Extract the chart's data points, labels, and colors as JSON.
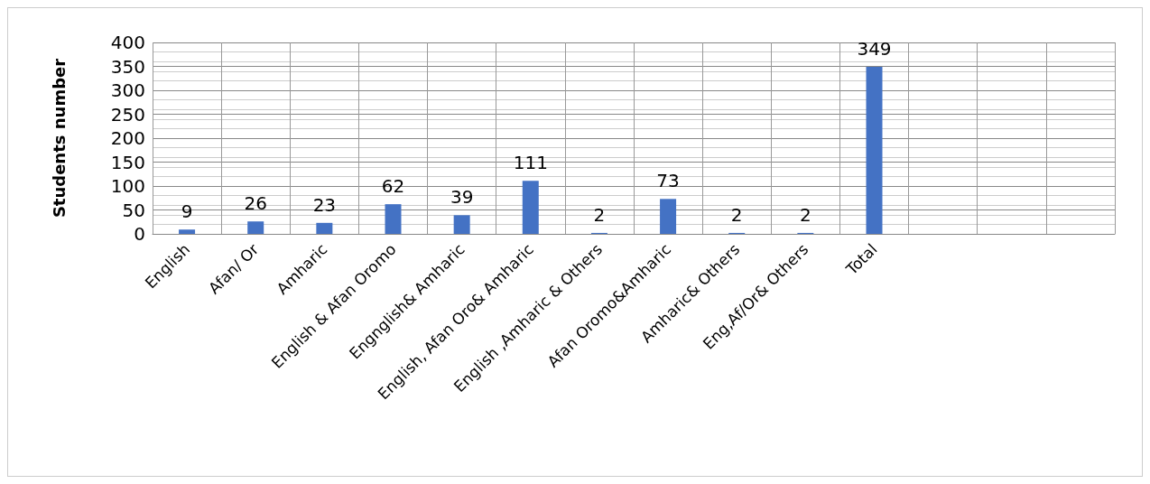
{
  "chart_data": {
    "type": "bar",
    "ylabel": "Students number",
    "categories": [
      "English",
      "Afan/ Or",
      "Amharic",
      "English & Afan Oromo",
      "Engnglish& Amharic",
      "English, Afan Oro& Amharic",
      "English ,Amharic & Others",
      "Afan Oromo&Amharic",
      "Amharic& Others",
      "Eng,Af/Or& Others",
      "Total",
      null,
      null,
      null
    ],
    "values": [
      9,
      26,
      23,
      62,
      39,
      111,
      2,
      73,
      2,
      2,
      349,
      null,
      null,
      null
    ],
    "color": "#4472c4",
    "ylim": [
      0,
      400
    ],
    "yticks": [
      0,
      50,
      100,
      150,
      200,
      250,
      300,
      350,
      400
    ],
    "grid": true,
    "data_labels": true
  }
}
